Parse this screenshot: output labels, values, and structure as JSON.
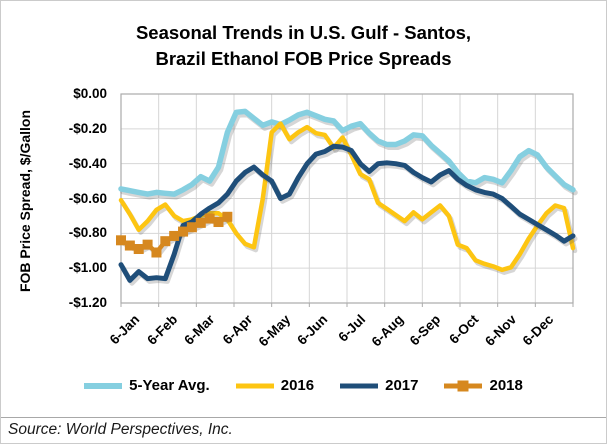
{
  "title": {
    "line1": "Seasonal Trends in U.S. Gulf - Santos,",
    "line2": "Brazil Ethanol FOB Price Spreads"
  },
  "source": "Source: World Perspectives, Inc.",
  "colors": {
    "five_year_avg": "#85CFE0",
    "y2016": "#FDC512",
    "y2017": "#1F4E79",
    "y2018": "#D6881F",
    "gridline": "#D6D6D6",
    "plot_frame": "#ABABAB"
  },
  "chart_data": {
    "type": "line",
    "title": "Seasonal Trends in U.S. Gulf - Santos, Brazil Ethanol FOB Price Spreads",
    "xlabel": "",
    "ylabel": "FOB Price Spread, $/Gallon",
    "ylim": [
      -1.2,
      0.0
    ],
    "ytick_step": 0.2,
    "ytick_labels": [
      "$0.00",
      "-$0.20",
      "-$0.40",
      "-$0.60",
      "-$0.80",
      "-$1.00",
      "-$1.20"
    ],
    "x_labels": [
      "6-Jan",
      "6-Feb",
      "6-Mar",
      "6-Apr",
      "6-May",
      "6-Jun",
      "6-Jul",
      "6-Aug",
      "6-Sep",
      "6-Oct",
      "6-Nov",
      "6-Dec"
    ],
    "x_unit": "weekly",
    "n_points": 52,
    "grid": true,
    "legend_position": "bottom",
    "series": [
      {
        "name": "5-Year Avg.",
        "color": "#85CFE0",
        "width": 5.5,
        "marker": "none",
        "values": [
          -0.545,
          -0.555,
          -0.565,
          -0.575,
          -0.565,
          -0.57,
          -0.575,
          -0.55,
          -0.52,
          -0.475,
          -0.5,
          -0.42,
          -0.22,
          -0.105,
          -0.1,
          -0.14,
          -0.18,
          -0.16,
          -0.175,
          -0.15,
          -0.12,
          -0.105,
          -0.125,
          -0.145,
          -0.155,
          -0.21,
          -0.185,
          -0.17,
          -0.225,
          -0.27,
          -0.29,
          -0.29,
          -0.27,
          -0.235,
          -0.24,
          -0.295,
          -0.34,
          -0.385,
          -0.45,
          -0.5,
          -0.51,
          -0.48,
          -0.49,
          -0.51,
          -0.44,
          -0.36,
          -0.325,
          -0.35,
          -0.42,
          -0.47,
          -0.52,
          -0.55
        ]
      },
      {
        "name": "2016",
        "color": "#FDC512",
        "width": 4.5,
        "marker": "none",
        "values": [
          -0.61,
          -0.69,
          -0.78,
          -0.73,
          -0.665,
          -0.635,
          -0.7,
          -0.73,
          -0.72,
          -0.7,
          -0.685,
          -0.685,
          -0.72,
          -0.8,
          -0.86,
          -0.88,
          -0.6,
          -0.22,
          -0.17,
          -0.26,
          -0.22,
          -0.19,
          -0.225,
          -0.235,
          -0.31,
          -0.25,
          -0.35,
          -0.46,
          -0.49,
          -0.625,
          -0.66,
          -0.695,
          -0.73,
          -0.68,
          -0.72,
          -0.68,
          -0.64,
          -0.7,
          -0.865,
          -0.885,
          -0.955,
          -0.975,
          -0.99,
          -1.01,
          -0.995,
          -0.92,
          -0.83,
          -0.755,
          -0.685,
          -0.64,
          -0.655,
          -0.885
        ]
      },
      {
        "name": "2017",
        "color": "#1F4E79",
        "width": 5,
        "marker": "none",
        "values": [
          -0.98,
          -1.07,
          -1.02,
          -1.06,
          -1.055,
          -1.06,
          -0.92,
          -0.755,
          -0.735,
          -0.69,
          -0.655,
          -0.625,
          -0.575,
          -0.5,
          -0.45,
          -0.42,
          -0.465,
          -0.5,
          -0.6,
          -0.575,
          -0.48,
          -0.4,
          -0.345,
          -0.33,
          -0.3,
          -0.305,
          -0.325,
          -0.4,
          -0.445,
          -0.4,
          -0.395,
          -0.4,
          -0.41,
          -0.45,
          -0.48,
          -0.505,
          -0.465,
          -0.44,
          -0.49,
          -0.525,
          -0.55,
          -0.565,
          -0.575,
          -0.6,
          -0.645,
          -0.69,
          -0.72,
          -0.75,
          -0.78,
          -0.81,
          -0.845,
          -0.815
        ]
      },
      {
        "name": "2018",
        "color": "#D6881F",
        "width": 4.5,
        "marker": "square",
        "values": [
          -0.84,
          -0.87,
          -0.89,
          -0.865,
          -0.91,
          -0.845,
          -0.815,
          -0.79,
          -0.765,
          -0.74,
          -0.715,
          -0.735,
          -0.705
        ]
      }
    ]
  }
}
